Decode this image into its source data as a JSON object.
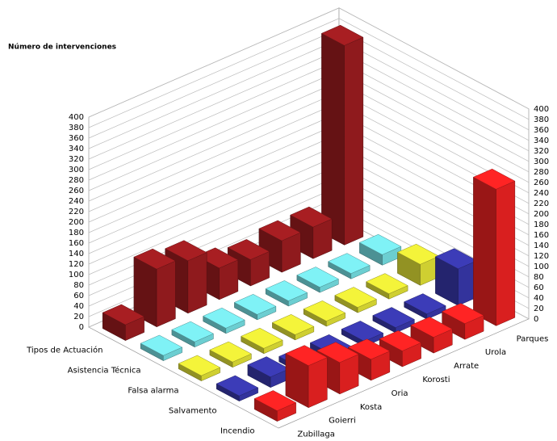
{
  "chart_data": {
    "type": "bar3d",
    "y_label": "Número de intervenciones",
    "categories": [
      "Zubillaga",
      "Goierri",
      "Kosta",
      "Oria",
      "Korosti",
      "Arrate",
      "Urola",
      "Parques"
    ],
    "series": [
      {
        "name": "Tipos de Actuación",
        "color": "#a81e22",
        "values": [
          30,
          110,
          100,
          60,
          50,
          60,
          60,
          380
        ]
      },
      {
        "name": "Asistencia Técnica",
        "color": "#7ff2f6",
        "values": [
          10,
          10,
          10,
          10,
          10,
          10,
          10,
          20
        ]
      },
      {
        "name": "Falsa alarma",
        "color": "#f4f43a",
        "values": [
          10,
          10,
          10,
          10,
          10,
          10,
          10,
          40
        ]
      },
      {
        "name": "Salvamento",
        "color": "#3c3cb8",
        "values": [
          10,
          20,
          10,
          10,
          10,
          10,
          10,
          70
        ]
      },
      {
        "name": "Incendio",
        "color": "#ff2424",
        "values": [
          20,
          80,
          60,
          40,
          30,
          30,
          30,
          260
        ]
      }
    ],
    "ylim": [
      0,
      400
    ],
    "yticks": [
      0,
      20,
      40,
      60,
      80,
      100,
      120,
      140,
      160,
      180,
      200,
      220,
      240,
      260,
      280,
      300,
      320,
      340,
      360,
      380,
      400
    ],
    "grid": true
  }
}
